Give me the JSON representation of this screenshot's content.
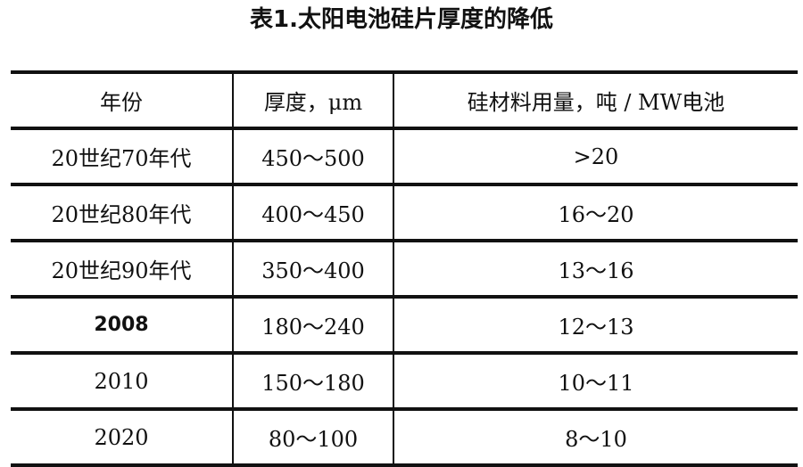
{
  "title": "表1.太阳电池硅片厚度的降低",
  "table": {
    "headers": [
      "年份",
      "厚度，μm",
      "硅材料用量，吨 /  MW电池"
    ],
    "rows": [
      [
        "20世纪70年代",
        "450～500",
        ">20"
      ],
      [
        "20世纪80年代",
        "400～450",
        "16～20"
      ],
      [
        "20世纪90年代",
        "350～400",
        "13～16"
      ],
      [
        "2008",
        "180～240",
        "12～13"
      ],
      [
        "2010",
        "150～180",
        "10～11"
      ],
      [
        "2020",
        "80～100",
        "8～10"
      ]
    ]
  }
}
